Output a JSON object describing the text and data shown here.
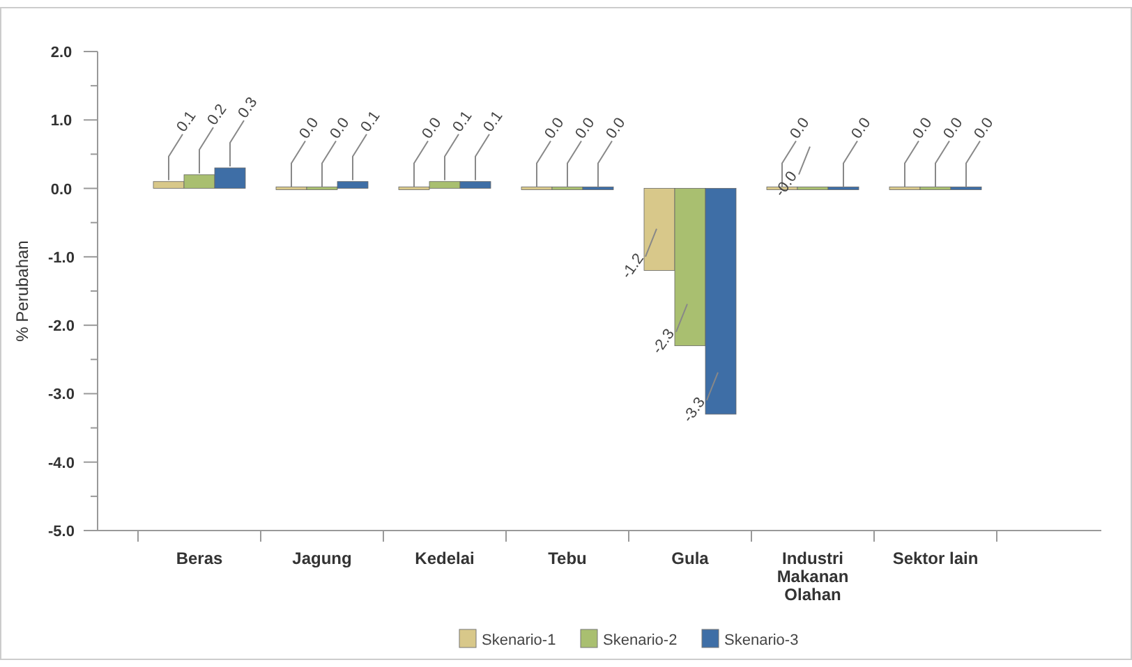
{
  "chart_data": {
    "type": "bar",
    "ylabel": "% Perubahan",
    "categories": [
      "Beras",
      "Jagung",
      "Kedelai",
      "Tebu",
      "Gula",
      "Industri Makanan Olahan",
      "Sektor lain"
    ],
    "series": [
      {
        "name": "Skenario-1",
        "color": "#d8c88a",
        "values": [
          0.1,
          0.0,
          0.0,
          0.0,
          -1.2,
          0.0,
          0.0
        ],
        "value_labels": [
          "0.1",
          "0.0",
          "0.0",
          "0.0",
          "-1.2",
          "0.0",
          "0.0"
        ]
      },
      {
        "name": "Skenario-2",
        "color": "#a9bf70",
        "values": [
          0.2,
          0.0,
          0.1,
          0.0,
          -2.3,
          0.0,
          0.0
        ],
        "value_labels": [
          "0.2",
          "0.0",
          "0.1",
          "0.0",
          "-2.3",
          "-0.0",
          "0.0"
        ]
      },
      {
        "name": "Skenario-3",
        "color": "#3e6ea6",
        "values": [
          0.3,
          0.1,
          0.1,
          0.0,
          -3.3,
          0.0,
          0.0
        ],
        "value_labels": [
          "0.3",
          "0.1",
          "0.1",
          "0.0",
          "-3.3",
          "0.0",
          "0.0"
        ]
      }
    ],
    "ylim": [
      -5,
      2
    ],
    "yticks": [
      {
        "value": -5,
        "label": "-5.0"
      },
      {
        "value": -4.5,
        "label": null
      },
      {
        "value": -4,
        "label": "-4.0"
      },
      {
        "value": -3.5,
        "label": null
      },
      {
        "value": -3,
        "label": "-3.0"
      },
      {
        "value": -2.5,
        "label": null
      },
      {
        "value": -2,
        "label": "-2.0"
      },
      {
        "value": -1.5,
        "label": null
      },
      {
        "value": -1,
        "label": "-1.0"
      },
      {
        "value": -0.5,
        "label": null
      },
      {
        "value": 0,
        "label": "0.0"
      },
      {
        "value": 0.5,
        "label": null
      },
      {
        "value": 1,
        "label": "1.0"
      },
      {
        "value": 1.5,
        "label": null
      },
      {
        "value": 2,
        "label": "2.0"
      }
    ],
    "legend": "bottom"
  }
}
